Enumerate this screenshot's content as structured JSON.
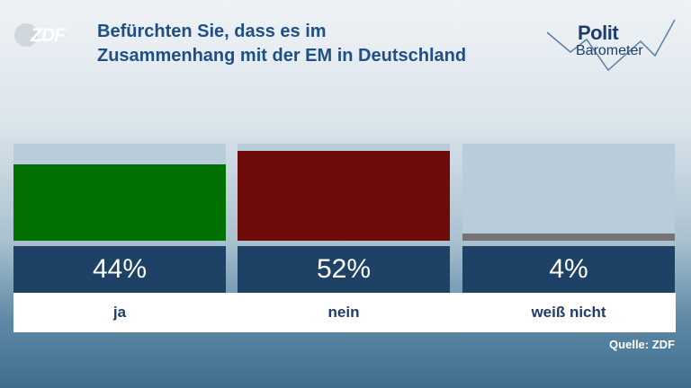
{
  "brand": {
    "logo_text": "ZDF"
  },
  "title_lines": [
    "Befürchten Sie, dass es im",
    "Zusammenhang mit der EM in Deutschland"
  ],
  "politbarometer": {
    "line1": "Polit",
    "line2": "Barometer"
  },
  "source": "Quelle: ZDF",
  "colors": {
    "ja": "#027002",
    "nein": "#6e0c0c",
    "weiss_nicht": "#747474",
    "value_box": "#1e4266",
    "title": "#1f4f85"
  },
  "chart_data": {
    "type": "bar",
    "categories": [
      "ja",
      "nein",
      "weiß nicht"
    ],
    "values": [
      44,
      52,
      4
    ],
    "value_labels": [
      "44%",
      "52%",
      "4%"
    ],
    "unit": "%",
    "ylim": [
      0,
      56
    ]
  }
}
